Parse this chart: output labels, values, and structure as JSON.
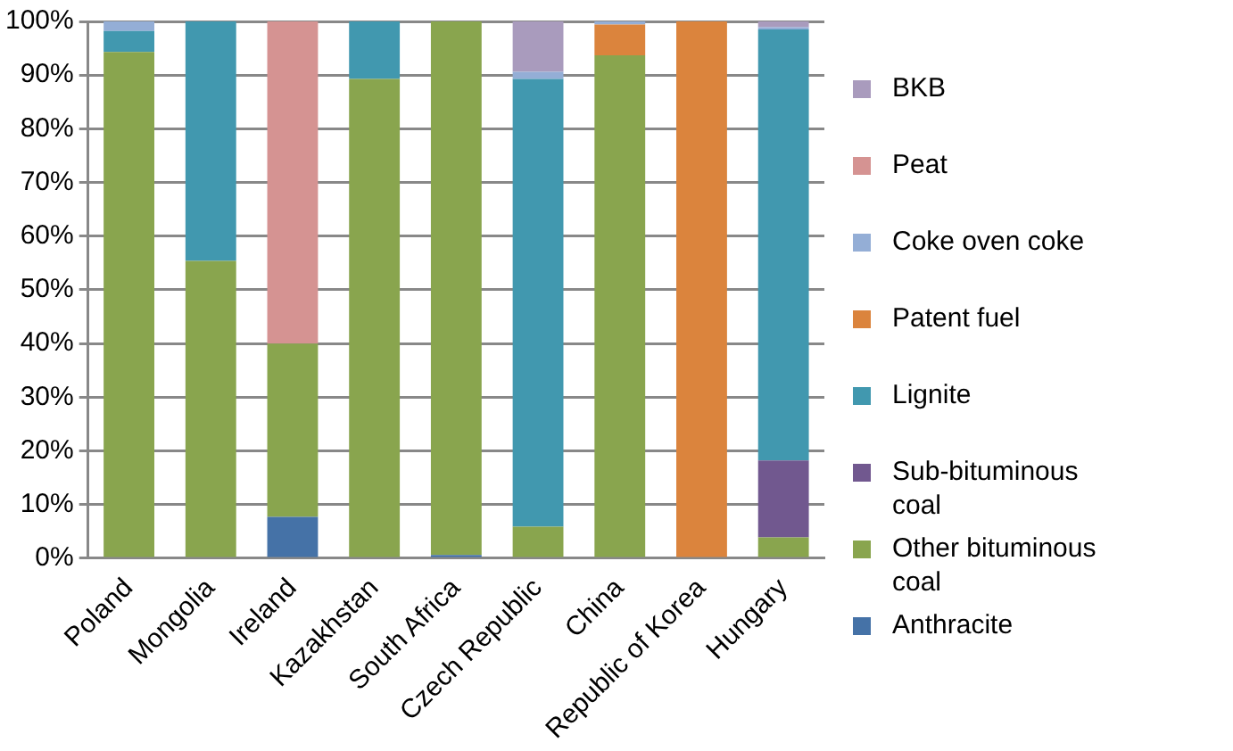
{
  "chart_data": {
    "type": "bar",
    "stacked": true,
    "categories": [
      "Poland",
      "Mongolia",
      "Ireland",
      "Kazakhstan",
      "South Africa",
      "Czech Republic",
      "China",
      "Republic of Korea",
      "Hungary"
    ],
    "series": [
      {
        "name": "Anthracite",
        "color": "#4572a7",
        "values": [
          0,
          0,
          7.7,
          0,
          0.6,
          0,
          0,
          0,
          0
        ]
      },
      {
        "name": "Other bituminous coal",
        "color": "#89a54e",
        "values": [
          94.3,
          55.4,
          32.3,
          89.3,
          99.4,
          5.9,
          93.7,
          0,
          3.9
        ]
      },
      {
        "name": "Sub-bituminous coal",
        "color": "#71588f",
        "values": [
          0,
          0,
          0,
          0,
          0,
          0,
          0,
          0,
          14.3
        ]
      },
      {
        "name": "Lignite",
        "color": "#4198af",
        "values": [
          3.9,
          44.6,
          0,
          10.7,
          0,
          83.4,
          0,
          0,
          80.3
        ]
      },
      {
        "name": "Patent fuel",
        "color": "#db843d",
        "values": [
          0,
          0,
          0,
          0,
          0,
          0,
          5.7,
          100,
          0
        ]
      },
      {
        "name": "Coke oven coke",
        "color": "#94aed6",
        "values": [
          1.8,
          0,
          0,
          0,
          0,
          1.3,
          0.6,
          0,
          0.4
        ]
      },
      {
        "name": "Peat",
        "color": "#d59392",
        "values": [
          0,
          0,
          60,
          0,
          0,
          0,
          0,
          0,
          0
        ]
      },
      {
        "name": "BKB",
        "color": "#a99bbd",
        "values": [
          0,
          0,
          0,
          0,
          0,
          9.4,
          0,
          0,
          1.1
        ]
      }
    ],
    "ylim": [
      0,
      100
    ],
    "yticks": [
      {
        "value": 0,
        "label": "0%"
      },
      {
        "value": 10,
        "label": "10%"
      },
      {
        "value": 20,
        "label": "20%"
      },
      {
        "value": 30,
        "label": "30%"
      },
      {
        "value": 40,
        "label": "40%"
      },
      {
        "value": 50,
        "label": "50%"
      },
      {
        "value": 60,
        "label": "60%"
      },
      {
        "value": 70,
        "label": "70%"
      },
      {
        "value": 80,
        "label": "80%"
      },
      {
        "value": 90,
        "label": "90%"
      },
      {
        "value": 100,
        "label": "100%"
      }
    ],
    "grid": "y",
    "legend": "right"
  }
}
